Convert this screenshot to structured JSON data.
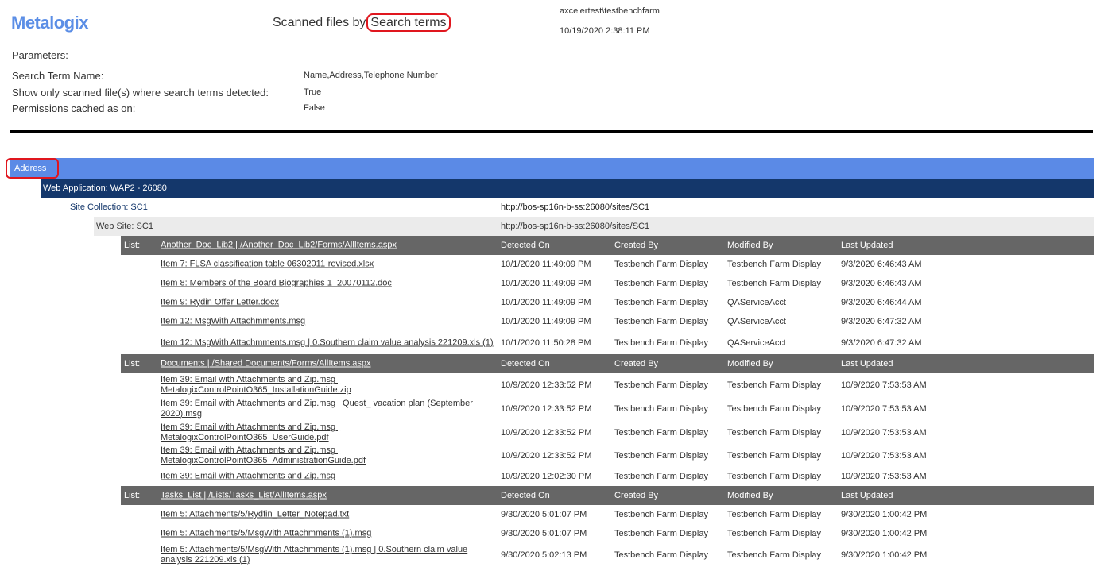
{
  "header": {
    "logo": "Metalogix",
    "title_prefix": "Scanned files by",
    "title_highlight": "Search terms",
    "user": "axcelertest\\testbenchfarm",
    "timestamp": "10/19/2020 2:38:11 PM"
  },
  "parameters": {
    "heading": "Parameters:",
    "items": [
      {
        "label": "Search Term Name:",
        "value": "Name,Address,Telephone Number"
      },
      {
        "label": "Show only scanned file(s) where search terms detected:",
        "value": "True"
      },
      {
        "label": "Permissions cached as on:",
        "value": "False"
      }
    ]
  },
  "colors": {
    "term_bar": "#5b8ae6",
    "webapp_bar": "#14376b",
    "website_bar": "#ebebeb",
    "list_header": "#666666",
    "highlight": "#e0161e"
  },
  "report": {
    "search_term": "Address",
    "web_application": "Web Application: WAP2 - 26080",
    "site_collection": {
      "label": "Site Collection: SC1",
      "url": "http://bos-sp16n-b-ss:26080/sites/SC1"
    },
    "web_site": {
      "label": "Web Site: SC1",
      "url": "http://bos-sp16n-b-ss:26080/sites/SC1"
    },
    "columns": [
      "Detected On",
      "Created By",
      "Modified By",
      "Last Updated"
    ],
    "list_prefix": "List:",
    "lists": [
      {
        "name": "Another_Doc_Lib2 | /Another_Doc_Lib2/Forms/AllItems.aspx",
        "items": [
          [
            "Item 7: FLSA classification table 06302011-revised.xlsx",
            "10/1/2020 11:49:09 PM",
            "Testbench Farm Display",
            "Testbench Farm Display",
            "9/3/2020 6:46:43 AM"
          ],
          [
            "Item 8: Members of the Board Biographies 1_20070112.doc",
            "10/1/2020 11:49:09 PM",
            "Testbench Farm Display",
            "Testbench Farm Display",
            "9/3/2020 6:46:43 AM"
          ],
          [
            "Item 9: Rydin Offer Letter.docx",
            "10/1/2020 11:49:09 PM",
            "Testbench Farm Display",
            "QAServiceAcct",
            "9/3/2020 6:46:44 AM"
          ],
          [
            "Item 12: MsgWith Attachmments.msg",
            "10/1/2020 11:49:09 PM",
            "Testbench Farm Display",
            "QAServiceAcct",
            "9/3/2020 6:47:32 AM"
          ],
          [
            "Item 12: MsgWith Attachmments.msg | 0.Southern claim value analysis 221209.xls (1)",
            "10/1/2020 11:50:28 PM",
            "Testbench Farm Display",
            "QAServiceAcct",
            "9/3/2020 6:47:32 AM"
          ]
        ]
      },
      {
        "name": "Documents | /Shared Documents/Forms/AllItems.aspx",
        "items": [
          [
            "Item 39: Email with Attachments and Zip.msg | MetalogixControlPointO365_InstallationGuide.zip",
            "10/9/2020 12:33:52 PM",
            "Testbench Farm Display",
            "Testbench Farm Display",
            "10/9/2020 7:53:53 AM"
          ],
          [
            "Item 39: Email with Attachments and Zip.msg | Quest_ vacation plan (September 2020).msg",
            "10/9/2020 12:33:52 PM",
            "Testbench Farm Display",
            "Testbench Farm Display",
            "10/9/2020 7:53:53 AM"
          ],
          [
            "Item 39: Email with Attachments and Zip.msg | MetalogixControlPointO365_UserGuide.pdf",
            "10/9/2020 12:33:52 PM",
            "Testbench Farm Display",
            "Testbench Farm Display",
            "10/9/2020 7:53:53 AM"
          ],
          [
            "Item 39: Email with Attachments and Zip.msg | MetalogixControlPointO365_AdministrationGuide.pdf",
            "10/9/2020 12:33:52 PM",
            "Testbench Farm Display",
            "Testbench Farm Display",
            "10/9/2020 7:53:53 AM"
          ],
          [
            "Item 39: Email with Attachments and Zip.msg",
            "10/9/2020 12:02:30 PM",
            "Testbench Farm Display",
            "Testbench Farm Display",
            "10/9/2020 7:53:53 AM"
          ]
        ]
      },
      {
        "name": "Tasks_List | /Lists/Tasks_List/AllItems.aspx",
        "items": [
          [
            "Item 5: Attachments/5/Rydfin_Letter_Notepad.txt",
            "9/30/2020 5:01:07 PM",
            "Testbench Farm Display",
            "Testbench Farm Display",
            "9/30/2020 1:00:42 PM"
          ],
          [
            "Item 5: Attachments/5/MsgWith Attachmments (1).msg",
            "9/30/2020 5:01:07 PM",
            "Testbench Farm Display",
            "Testbench Farm Display",
            "9/30/2020 1:00:42 PM"
          ],
          [
            "Item 5: Attachments/5/MsgWith Attachmments (1).msg | 0.Southern claim value analysis 221209.xls (1)",
            "9/30/2020 5:02:13 PM",
            "Testbench Farm Display",
            "Testbench Farm Display",
            "9/30/2020 1:00:42 PM"
          ]
        ]
      }
    ]
  }
}
